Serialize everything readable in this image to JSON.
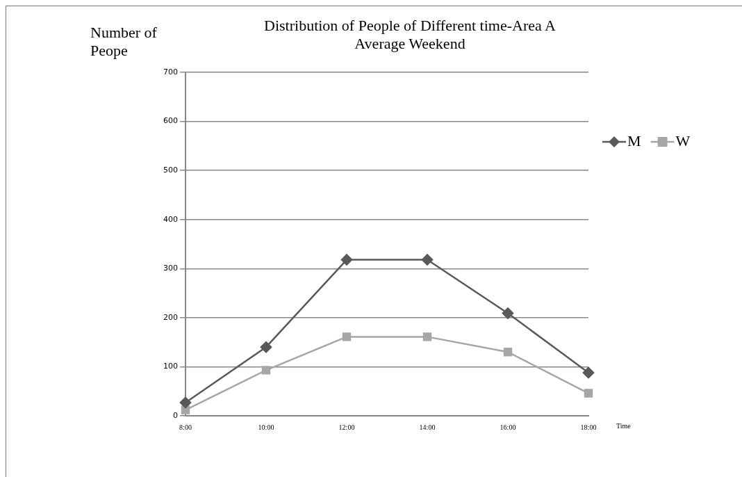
{
  "chart_data": {
    "type": "line",
    "title": "Distribution of People of Different time-Area A",
    "subtitle": "Average Weekend",
    "xlabel": "Time",
    "ylabel": "Number of Peope",
    "categories": [
      "8:00",
      "10:00",
      "12:00",
      "14:00",
      "16:00",
      "18:00"
    ],
    "series": [
      {
        "name": "M",
        "color": "#595959",
        "marker": "diamond",
        "values": [
          27,
          140,
          318,
          318,
          209,
          88
        ]
      },
      {
        "name": "W",
        "color": "#a6a6a6",
        "marker": "square",
        "values": [
          12,
          93,
          161,
          161,
          130,
          46
        ]
      }
    ],
    "ylim": [
      0,
      700
    ],
    "yticks": [
      0,
      100,
      200,
      300,
      400,
      500,
      600,
      700
    ],
    "grid": "y",
    "legend": "right",
    "line_style": "solid"
  }
}
